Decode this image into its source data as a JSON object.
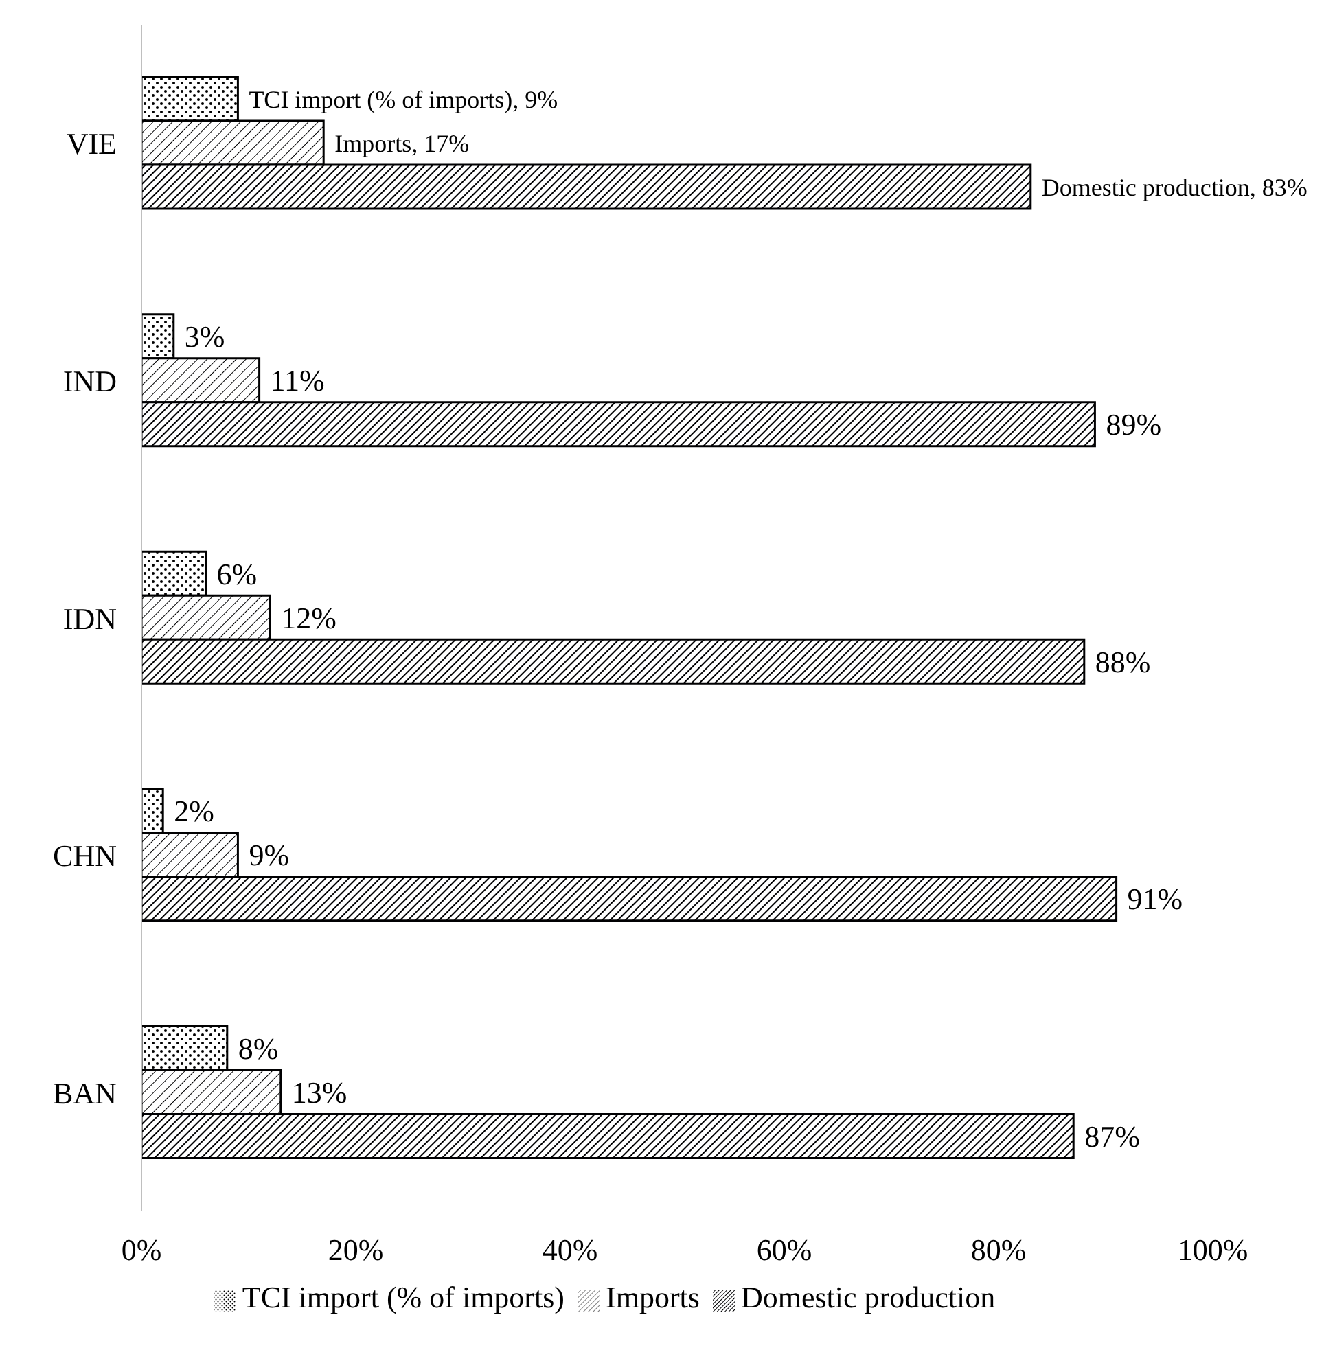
{
  "chart_data": {
    "type": "bar",
    "orientation": "horizontal",
    "categories": [
      "VIE",
      "IND",
      "IDN",
      "CHN",
      "BAN"
    ],
    "series": [
      {
        "name": "TCI import (% of imports)",
        "color": "#000000",
        "values": [
          9,
          3,
          6,
          2,
          8
        ],
        "value_labels": [
          "TCI import (% of imports), 9%",
          "3%",
          "6%",
          "2%",
          "8%"
        ]
      },
      {
        "name": "Imports",
        "color": "#000001",
        "values": [
          17,
          11,
          12,
          9,
          13
        ],
        "value_labels": [
          "Imports, 17%",
          "11%",
          "12%",
          "9%",
          "13%"
        ]
      },
      {
        "name": "Domestic production",
        "color": "#000002",
        "values": [
          83,
          89,
          88,
          91,
          87
        ],
        "value_labels": [
          "Domestic production, 83%",
          "89%",
          "88%",
          "91%",
          "87%"
        ]
      }
    ],
    "xlim": [
      0,
      100
    ],
    "xticks": [
      {
        "value": 0,
        "label": "0%"
      },
      {
        "value": 20,
        "label": "20%"
      },
      {
        "value": 40,
        "label": "40%"
      },
      {
        "value": 60,
        "label": "60%"
      },
      {
        "value": 80,
        "label": "80%"
      },
      {
        "value": 100,
        "label": "100%"
      }
    ],
    "grid": false,
    "legend": "bottom"
  }
}
